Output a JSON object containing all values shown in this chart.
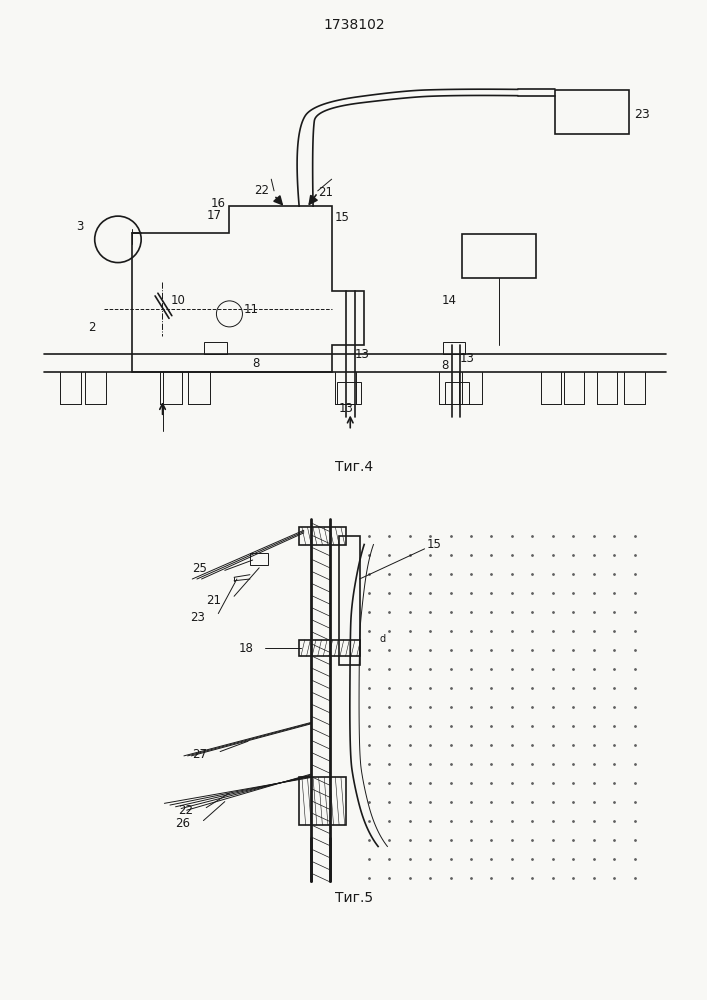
{
  "title": "1738102",
  "fig4_label": "Τиг.4",
  "fig5_label": "Τиг.5",
  "bg_color": "#ffffff",
  "line_color": "#1a1a1a"
}
